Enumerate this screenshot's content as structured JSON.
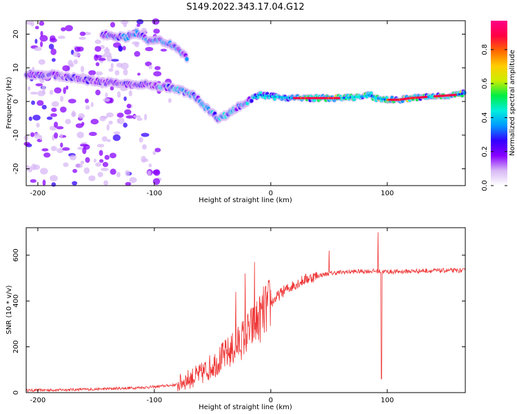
{
  "title": "S149.2022.343.17.04.G12",
  "chart_data": [
    {
      "type": "heatmap",
      "xlabel": "Height of straight line (km)",
      "ylabel": "Frequency (Hz)",
      "xlim": [
        -210,
        167
      ],
      "ylim": [
        -25,
        24
      ],
      "xticks": [
        -200,
        -100,
        0,
        100
      ],
      "yticks": [
        -20,
        -10,
        0,
        10,
        20
      ],
      "grid": false,
      "colorbar": {
        "label": "Normalized spectral amplitude",
        "range": [
          0,
          0.97
        ],
        "ticks": [
          0.0,
          0.2,
          0.4,
          0.6,
          0.8
        ],
        "colormap": [
          "#ffffff",
          "#d8b8f5",
          "#8800ff",
          "#3300ff",
          "#0099ff",
          "#00eedd",
          "#00ee44",
          "#ccee00",
          "#ffcc00",
          "#ff6600",
          "#ff0044",
          "#ff0088"
        ]
      },
      "ridges": [
        {
          "x": [
            -210,
            -190,
            -170,
            -150,
            -135,
            -120,
            -105,
            -95,
            -85,
            -75,
            -65,
            -55,
            -45,
            -38,
            -30,
            -20,
            -10,
            0,
            20,
            40,
            60,
            80,
            85,
            90,
            100,
            110,
            120,
            140,
            160,
            167
          ],
          "y": [
            8,
            8,
            7,
            6,
            5.5,
            5,
            5,
            4.5,
            4,
            3,
            1.5,
            -2,
            -5,
            -4,
            -2,
            0,
            2,
            1.5,
            1,
            1,
            1,
            1.5,
            2,
            1,
            0.5,
            0.5,
            1,
            1.5,
            2,
            2.5
          ]
        },
        {
          "x": [
            -145,
            -135,
            -125,
            -115,
            -105,
            -95,
            -85,
            -78,
            -72
          ],
          "y": [
            20,
            19.5,
            19,
            20.5,
            18,
            18,
            17,
            15,
            13
          ]
        }
      ]
    },
    {
      "type": "line",
      "xlabel": "Height of straight line (km)",
      "ylabel": "SNR (10 * v/v)",
      "xlim": [
        -210,
        167
      ],
      "ylim": [
        0,
        720
      ],
      "xticks": [
        -200,
        -100,
        0,
        100
      ],
      "yticks": [
        0,
        200,
        400,
        600
      ],
      "color": "#ee3333",
      "series": [
        {
          "x": [
            -210,
            -180,
            -150,
            -120,
            -100,
            -90,
            -80,
            -75,
            -70,
            -65,
            -60,
            -55,
            -50,
            -45,
            -40,
            -35,
            -30,
            -25,
            -20,
            -15,
            -10,
            -5,
            0,
            10,
            20,
            30,
            40,
            50,
            60,
            70,
            80,
            90,
            100,
            110,
            120,
            130,
            140,
            150,
            160,
            167
          ],
          "y": [
            10,
            12,
            15,
            20,
            25,
            30,
            35,
            50,
            60,
            70,
            80,
            100,
            120,
            140,
            160,
            180,
            200,
            230,
            260,
            290,
            320,
            360,
            390,
            440,
            470,
            495,
            510,
            520,
            525,
            528,
            530,
            530,
            528,
            528,
            530,
            532,
            532,
            533,
            533,
            532
          ],
          "spikes": [
            {
              "x": -30,
              "y": 440
            },
            {
              "x": -22,
              "y": 520
            },
            {
              "x": -14,
              "y": 570
            },
            {
              "x": 50,
              "y": 620
            },
            {
              "x": 92,
              "y": 700
            },
            {
              "x": 95,
              "y": 60
            }
          ]
        }
      ]
    }
  ]
}
